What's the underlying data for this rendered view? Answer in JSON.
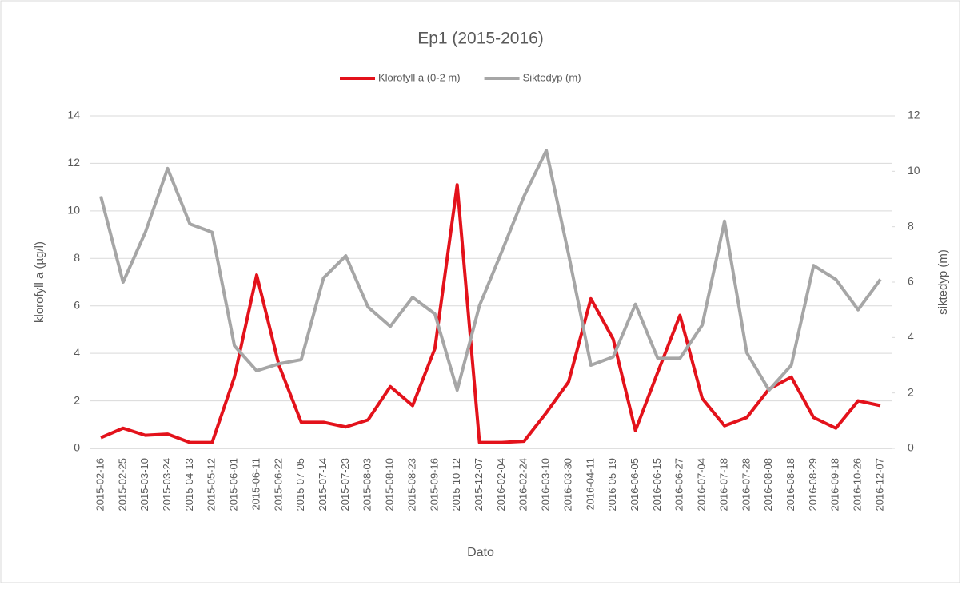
{
  "chart_data": {
    "type": "line",
    "title": "Ep1 (2015-2016)",
    "x_label": "Dato",
    "y_label": "klorofyll a (µg/l)",
    "y2_label": "siktedyp (m)",
    "categories": [
      "2015-02-16",
      "2015-02-25",
      "2015-03-10",
      "2015-03-24",
      "2015-04-13",
      "2015-05-12",
      "2015-06-01",
      "2015-06-11",
      "2015-06-22",
      "2015-07-05",
      "2015-07-14",
      "2015-07-23",
      "2015-08-03",
      "2015-08-10",
      "2015-08-23",
      "2015-09-16",
      "2015-10-12",
      "2015-12-07",
      "2016-02-04",
      "2016-02-24",
      "2016-03-10",
      "2016-03-30",
      "2016-04-11",
      "2016-05-19",
      "2016-06-05",
      "2016-06-15",
      "2016-06-27",
      "2016-07-04",
      "2016-07-18",
      "2016-07-28",
      "2016-08-08",
      "2016-08-18",
      "2016-08-29",
      "2016-09-18",
      "2016-10-26",
      "2016-12-07"
    ],
    "series": [
      {
        "name": "Klorofyll a (0-2 m)",
        "color": "#e3121b",
        "values": [
          0.45,
          0.85,
          0.55,
          0.6,
          0.25,
          0.25,
          3.0,
          7.3,
          3.5,
          1.1,
          1.1,
          0.9,
          1.2,
          2.6,
          1.8,
          4.2,
          11.1,
          0.25,
          0.25,
          0.3,
          1.5,
          2.8,
          6.3,
          4.6,
          0.75,
          3.2,
          5.6,
          2.1,
          0.95,
          1.3,
          2.5,
          3.0,
          1.3,
          0.85,
          2.0,
          1.8
        ]
      },
      {
        "name": "Siktedyp (m)",
        "color": "#a6a6a6",
        "axis": "y2",
        "values": [
          9.1,
          6.0,
          7.8,
          10.1,
          8.1,
          7.8,
          3.7,
          2.8,
          3.05,
          3.2,
          6.15,
          6.95,
          5.1,
          4.4,
          5.45,
          4.85,
          2.1,
          5.15,
          7.1,
          9.1,
          10.75,
          7.0,
          3.0,
          3.3,
          5.2,
          3.25,
          3.25,
          4.45,
          8.2,
          3.45,
          2.1,
          3.0,
          6.6,
          6.1,
          5.0,
          6.1
        ]
      }
    ],
    "ylim": [
      0,
      14
    ],
    "yticks": [
      0,
      2,
      4,
      6,
      8,
      10,
      12,
      14
    ],
    "y2lim": [
      0,
      12
    ],
    "y2ticks": [
      0,
      2,
      4,
      6,
      8,
      10,
      12
    ],
    "grid": true,
    "legend": "top"
  }
}
